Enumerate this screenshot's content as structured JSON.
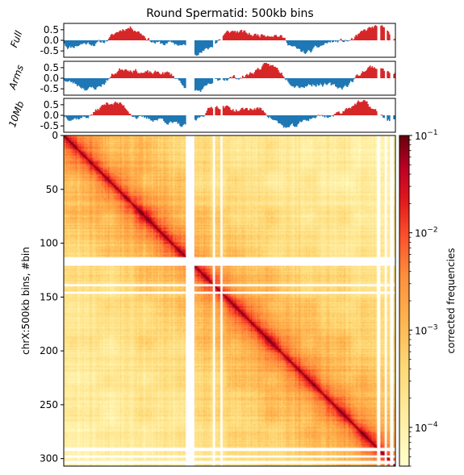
{
  "chart_data": [
    {
      "type": "bar",
      "panel": "eigenvector",
      "title": "Round Spermatid: 500kb bins",
      "ylabel": "Full",
      "ylim": [
        -0.8,
        0.8
      ],
      "yticks": [
        "0.5",
        "0.0",
        "-0.5"
      ],
      "tick_values": [
        0.5,
        0.0,
        -0.5
      ],
      "positive_color": "#d62728",
      "negative_color": "#1f77b4",
      "seed": 11
    },
    {
      "type": "bar",
      "panel": "eigenvector",
      "ylabel": "Arms",
      "ylim": [
        -0.8,
        0.8
      ],
      "yticks": [
        "0.5",
        "0.0",
        "-0.5"
      ],
      "tick_values": [
        0.5,
        0.0,
        -0.5
      ],
      "positive_color": "#d62728",
      "negative_color": "#1f77b4",
      "seed": 23
    },
    {
      "type": "bar",
      "panel": "eigenvector",
      "ylabel": "10Mb",
      "ylim": [
        -0.8,
        0.8
      ],
      "yticks": [
        "0.5",
        "0.0",
        "-0.5"
      ],
      "tick_values": [
        0.5,
        0.0,
        -0.5
      ],
      "positive_color": "#d62728",
      "negative_color": "#1f77b4",
      "seed": 37
    },
    {
      "type": "heatmap",
      "ylabel": "chrX:500kb bins, #bin",
      "n_bins": 307,
      "yticks": [
        "0",
        "50",
        "100",
        "150",
        "200",
        "250",
        "300"
      ],
      "tick_values": [
        0,
        50,
        100,
        150,
        200,
        250,
        300
      ],
      "masked_bins": [
        [
          113,
          120
        ],
        [
          138,
          139
        ],
        [
          145,
          146
        ],
        [
          290,
          292
        ],
        [
          297,
          298
        ],
        [
          302,
          304
        ]
      ],
      "masked_cols": [
        [
          113,
          120
        ],
        [
          138,
          139
        ],
        [
          145,
          146
        ],
        [
          290,
          292
        ],
        [
          297,
          298
        ],
        [
          302,
          304
        ]
      ],
      "colorbar": {
        "label": "corrected frequencies",
        "scale": "log",
        "range": [
          4e-05,
          0.1
        ],
        "ticks": [
          "10",
          "10",
          "10",
          "10"
        ],
        "tick_exponents": [
          "−1",
          "−2",
          "−3",
          "−4"
        ],
        "tick_values": [
          0.1,
          0.01,
          0.001,
          0.0001
        ]
      }
    }
  ]
}
